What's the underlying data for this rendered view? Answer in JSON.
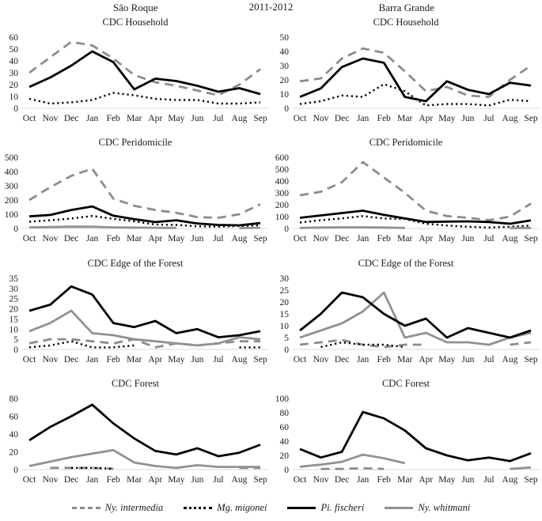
{
  "header": {
    "left_title": "São Roque",
    "center_title": "2011-2012",
    "right_title": "Barra Grande"
  },
  "months": [
    "Oct",
    "Nov",
    "Dec",
    "Jan",
    "Feb",
    "Mar",
    "Apr",
    "May",
    "Jun",
    "Jul",
    "Aug",
    "Sep"
  ],
  "colors": {
    "black": "#000000",
    "gray": "#8c8c8c",
    "axis": "#d9d9d9"
  },
  "series_styles": {
    "intermedia": {
      "color": "#8c8c8c",
      "width": 2.8,
      "dash": "11 7"
    },
    "migonei": {
      "color": "#000000",
      "width": 2.4,
      "dash": "2.2 3.8"
    },
    "fischeri": {
      "color": "#000000",
      "width": 2.8,
      "dash": ""
    },
    "whitmani": {
      "color": "#919191",
      "width": 2.8,
      "dash": ""
    }
  },
  "legend": [
    {
      "key": "intermedia",
      "label": "Ny. intermedia"
    },
    {
      "key": "migonei",
      "label": "Mg. migonei"
    },
    {
      "key": "fischeri",
      "label": "Pi. fischeri"
    },
    {
      "key": "whitmani",
      "label": "Ny. whitmani"
    }
  ],
  "chart_data": [
    {
      "type": "line",
      "location": "São Roque",
      "title": "CDC Household",
      "ylim": [
        0,
        60
      ],
      "yticks": [
        0,
        10,
        20,
        30,
        40,
        50,
        60
      ],
      "grid": false,
      "series": [
        {
          "key": "intermedia",
          "name": "Ny. intermedia",
          "values": [
            30,
            43,
            56,
            53,
            42,
            28,
            22,
            19,
            15,
            11,
            20,
            33
          ]
        },
        {
          "key": "migonei",
          "name": "Mg. migonei",
          "values": [
            8,
            4,
            5,
            7,
            13,
            11,
            8,
            7,
            7,
            4,
            4,
            5
          ]
        },
        {
          "key": "fischeri",
          "name": "Pi. fischeri",
          "values": [
            18,
            26,
            36,
            48,
            39,
            16,
            25,
            23,
            19,
            14,
            17,
            12
          ]
        }
      ]
    },
    {
      "type": "line",
      "location": "Barra Grande",
      "title": "CDC Household",
      "ylim": [
        0,
        50
      ],
      "yticks": [
        0,
        10,
        20,
        30,
        40,
        50
      ],
      "grid": false,
      "series": [
        {
          "key": "intermedia",
          "name": "Ny. intermedia",
          "values": [
            19,
            21,
            35,
            42,
            39,
            26,
            12,
            15,
            9,
            8,
            20,
            30
          ]
        },
        {
          "key": "migonei",
          "name": "Mg. migonei",
          "values": [
            3,
            5,
            9,
            8,
            17,
            12,
            2,
            3,
            3,
            2,
            6,
            5
          ]
        },
        {
          "key": "fischeri",
          "name": "Pi. fischeri",
          "values": [
            8,
            14,
            29,
            35,
            32,
            8,
            5,
            19,
            13,
            10,
            18,
            16
          ]
        }
      ]
    },
    {
      "type": "line",
      "location": "São Roque",
      "title": "CDC Peridomicile",
      "ylim": [
        0,
        500
      ],
      "yticks": [
        0,
        100,
        200,
        300,
        400,
        500
      ],
      "grid": false,
      "series": [
        {
          "key": "intermedia",
          "name": "Ny. intermedia",
          "values": [
            200,
            290,
            370,
            420,
            210,
            160,
            130,
            110,
            80,
            75,
            100,
            170
          ]
        },
        {
          "key": "migonei",
          "name": "Mg. migonei",
          "values": [
            48,
            58,
            70,
            88,
            68,
            50,
            28,
            25,
            15,
            12,
            18,
            22
          ]
        },
        {
          "key": "whitmani",
          "name": "Ny. whitmani",
          "values": [
            8,
            10,
            13,
            12,
            8,
            6,
            5,
            4,
            null,
            null,
            3,
            5
          ]
        },
        {
          "key": "fischeri",
          "name": "Pi. fischeri",
          "values": [
            85,
            95,
            130,
            155,
            90,
            65,
            45,
            58,
            35,
            25,
            22,
            38
          ]
        }
      ]
    },
    {
      "type": "line",
      "location": "Barra Grande",
      "title": "CDC Peridomicile",
      "ylim": [
        0,
        600
      ],
      "yticks": [
        0,
        100,
        200,
        300,
        400,
        500,
        600
      ],
      "grid": false,
      "series": [
        {
          "key": "intermedia",
          "name": "Ny. intermedia",
          "values": [
            280,
            310,
            390,
            560,
            430,
            300,
            150,
            105,
            90,
            70,
            100,
            210
          ]
        },
        {
          "key": "migonei",
          "name": "Mg. migonei",
          "values": [
            50,
            70,
            85,
            105,
            85,
            80,
            40,
            25,
            15,
            8,
            15,
            25
          ]
        },
        {
          "key": "whitmani",
          "name": "Ny. whitmani",
          "values": [
            5,
            8,
            10,
            10,
            8,
            5,
            null,
            null,
            null,
            null,
            3,
            5
          ]
        },
        {
          "key": "fischeri",
          "name": "Pi. fischeri",
          "values": [
            90,
            110,
            130,
            150,
            115,
            85,
            55,
            58,
            60,
            55,
            40,
            68
          ]
        }
      ]
    },
    {
      "type": "line",
      "location": "São Roque",
      "title": "CDC Edge of the Forest",
      "ylim": [
        0,
        35
      ],
      "yticks": [
        0,
        5,
        10,
        15,
        20,
        25,
        30,
        35
      ],
      "grid": false,
      "series": [
        {
          "key": "intermedia",
          "name": "Ny. intermedia",
          "values": [
            3,
            5,
            5,
            4,
            3,
            5,
            1,
            3,
            2,
            3,
            4,
            4
          ]
        },
        {
          "key": "migonei",
          "name": "Mg. migonei",
          "values": [
            1,
            2,
            4,
            1,
            1,
            2,
            null,
            null,
            null,
            null,
            1,
            1
          ]
        },
        {
          "key": "whitmani",
          "name": "Ny. whitmani",
          "values": [
            9,
            13,
            19,
            8,
            7,
            5,
            4,
            3,
            2,
            3,
            6,
            5
          ]
        },
        {
          "key": "fischeri",
          "name": "Pi. fischeri",
          "values": [
            19,
            22,
            31,
            27,
            13,
            11,
            14,
            8,
            10,
            6,
            7,
            9
          ]
        }
      ]
    },
    {
      "type": "line",
      "location": "Barra Grande",
      "title": "CDC Edge of the Forest",
      "ylim": [
        0,
        30
      ],
      "yticks": [
        0,
        5,
        10,
        15,
        20,
        25,
        30
      ],
      "grid": false,
      "series": [
        {
          "key": "intermedia",
          "name": "Ny. intermedia",
          "values": [
            2,
            3,
            4,
            2,
            1,
            2,
            2,
            null,
            null,
            null,
            2,
            3
          ]
        },
        {
          "key": "migonei",
          "name": "Mg. migonei",
          "values": [
            null,
            1,
            3,
            2,
            2,
            1,
            null,
            null,
            null,
            null,
            null,
            null
          ]
        },
        {
          "key": "whitmani",
          "name": "Ny. whitmani",
          "values": [
            5,
            8,
            11,
            16,
            24,
            5,
            7,
            3,
            3,
            2,
            5,
            7
          ]
        },
        {
          "key": "fischeri",
          "name": "Pi. fischeri",
          "values": [
            8,
            15,
            24,
            22,
            15,
            10,
            13,
            5,
            9,
            7,
            5,
            8
          ]
        }
      ]
    },
    {
      "type": "line",
      "location": "São Roque",
      "title": "CDC Forest",
      "ylim": [
        0,
        80
      ],
      "yticks": [
        0,
        20,
        40,
        60,
        80
      ],
      "grid": false,
      "series": [
        {
          "key": "intermedia",
          "name": "Ny. intermedia",
          "values": [
            null,
            2,
            2,
            2,
            1,
            null,
            null,
            null,
            null,
            null,
            2,
            2
          ]
        },
        {
          "key": "migonei",
          "name": "Mg. migonei",
          "values": [
            null,
            null,
            2,
            2,
            1,
            null,
            null,
            null,
            null,
            null,
            null,
            null
          ]
        },
        {
          "key": "whitmani",
          "name": "Ny. whitmani",
          "values": [
            4,
            9,
            14,
            18,
            22,
            8,
            4,
            2,
            5,
            3,
            3,
            3
          ]
        },
        {
          "key": "fischeri",
          "name": "Pi. fischeri",
          "values": [
            33,
            48,
            60,
            73,
            52,
            35,
            21,
            17,
            24,
            15,
            19,
            28
          ]
        }
      ]
    },
    {
      "type": "line",
      "location": "Barra Grande",
      "title": "CDC Forest",
      "ylim": [
        0,
        100
      ],
      "yticks": [
        0,
        20,
        40,
        60,
        80,
        100
      ],
      "grid": false,
      "series": [
        {
          "key": "intermedia",
          "name": "Ny. intermedia",
          "values": [
            null,
            1,
            1,
            2,
            1,
            null,
            null,
            null,
            null,
            null,
            null,
            null
          ]
        },
        {
          "key": "whitmani",
          "name": "Ny. whitmani",
          "values": [
            4,
            7,
            11,
            21,
            16,
            9,
            null,
            null,
            null,
            null,
            1,
            3
          ]
        },
        {
          "key": "fischeri",
          "name": "Pi. fischeri",
          "values": [
            29,
            17,
            25,
            81,
            72,
            55,
            30,
            20,
            13,
            17,
            12,
            23
          ]
        }
      ]
    }
  ]
}
